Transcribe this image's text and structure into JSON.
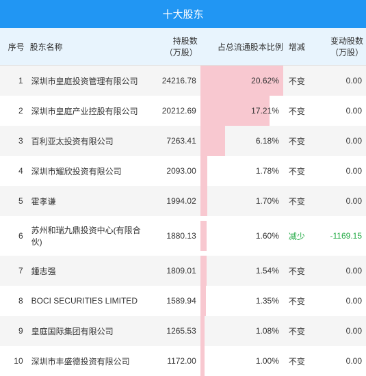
{
  "title": "十大股东",
  "columns": [
    "序号",
    "股东名称",
    "持股数\n（万股）",
    "占总流通股本比例",
    "增减",
    "变动股数\n（万股）"
  ],
  "max_pct": 20.62,
  "bar_color": "#f8c8d0",
  "header_bg": "#e8f4fd",
  "title_bg": "#2196f3",
  "green_color": "#22aa44",
  "rows": [
    {
      "idx": "1",
      "name": "深圳市皇庭投资管理有限公司",
      "shares": "24216.78",
      "pct": 20.62,
      "pct_label": "20.62%",
      "chg": "不变",
      "delta": "0.00",
      "chg_class": ""
    },
    {
      "idx": "2",
      "name": "深圳市皇庭产业控股有限公司",
      "shares": "20212.69",
      "pct": 17.21,
      "pct_label": "17.21%",
      "chg": "不变",
      "delta": "0.00",
      "chg_class": ""
    },
    {
      "idx": "3",
      "name": "百利亚太投资有限公司",
      "shares": "7263.41",
      "pct": 6.18,
      "pct_label": "6.18%",
      "chg": "不变",
      "delta": "0.00",
      "chg_class": ""
    },
    {
      "idx": "4",
      "name": "深圳市耀欣投资有限公司",
      "shares": "2093.00",
      "pct": 1.78,
      "pct_label": "1.78%",
      "chg": "不变",
      "delta": "0.00",
      "chg_class": ""
    },
    {
      "idx": "5",
      "name": "霍孝谦",
      "shares": "1994.02",
      "pct": 1.7,
      "pct_label": "1.70%",
      "chg": "不变",
      "delta": "0.00",
      "chg_class": ""
    },
    {
      "idx": "6",
      "name": "苏州和瑞九鼎投资中心(有限合伙)",
      "shares": "1880.13",
      "pct": 1.6,
      "pct_label": "1.60%",
      "chg": "减少",
      "delta": "-1169.15",
      "chg_class": "green"
    },
    {
      "idx": "7",
      "name": "鍾志强",
      "shares": "1809.01",
      "pct": 1.54,
      "pct_label": "1.54%",
      "chg": "不变",
      "delta": "0.00",
      "chg_class": ""
    },
    {
      "idx": "8",
      "name": "BOCI SECURITIES LIMITED",
      "shares": "1589.94",
      "pct": 1.35,
      "pct_label": "1.35%",
      "chg": "不变",
      "delta": "0.00",
      "chg_class": ""
    },
    {
      "idx": "9",
      "name": "皇庭国际集团有限公司",
      "shares": "1265.53",
      "pct": 1.08,
      "pct_label": "1.08%",
      "chg": "不变",
      "delta": "0.00",
      "chg_class": ""
    },
    {
      "idx": "10",
      "name": "深圳市丰盛德投资有限公司",
      "shares": "1172.00",
      "pct": 1.0,
      "pct_label": "1.00%",
      "chg": "不变",
      "delta": "0.00",
      "chg_class": ""
    }
  ]
}
